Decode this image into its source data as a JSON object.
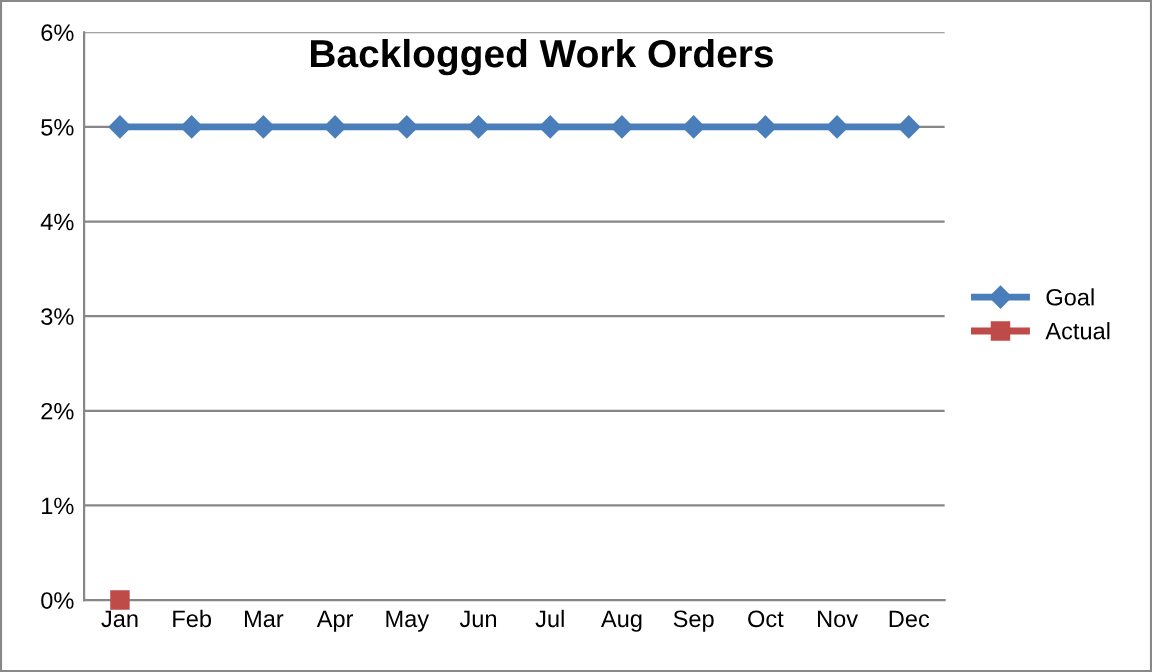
{
  "chart_data": {
    "type": "line",
    "title": "Backlogged Work Orders",
    "categories": [
      "Jan",
      "Feb",
      "Mar",
      "Apr",
      "May",
      "Jun",
      "Jul",
      "Aug",
      "Sep",
      "Oct",
      "Nov",
      "Dec"
    ],
    "series": [
      {
        "name": "Goal",
        "color": "#4a7ebb",
        "marker": "diamond",
        "values": [
          5,
          5,
          5,
          5,
          5,
          5,
          5,
          5,
          5,
          5,
          5,
          5
        ]
      },
      {
        "name": "Actual",
        "color": "#be4b48",
        "marker": "square",
        "values": [
          0,
          null,
          null,
          null,
          null,
          null,
          null,
          null,
          null,
          null,
          null,
          null
        ]
      }
    ],
    "ylim": [
      0,
      6
    ],
    "yticks": [
      {
        "value": 0,
        "label": "0%"
      },
      {
        "value": 1,
        "label": "1%"
      },
      {
        "value": 2,
        "label": "2%"
      },
      {
        "value": 3,
        "label": "3%"
      },
      {
        "value": 4,
        "label": "4%"
      },
      {
        "value": 5,
        "label": "5%"
      },
      {
        "value": 6,
        "label": "6%"
      }
    ],
    "grid": "y",
    "legend": "right",
    "line_style": "solid"
  }
}
